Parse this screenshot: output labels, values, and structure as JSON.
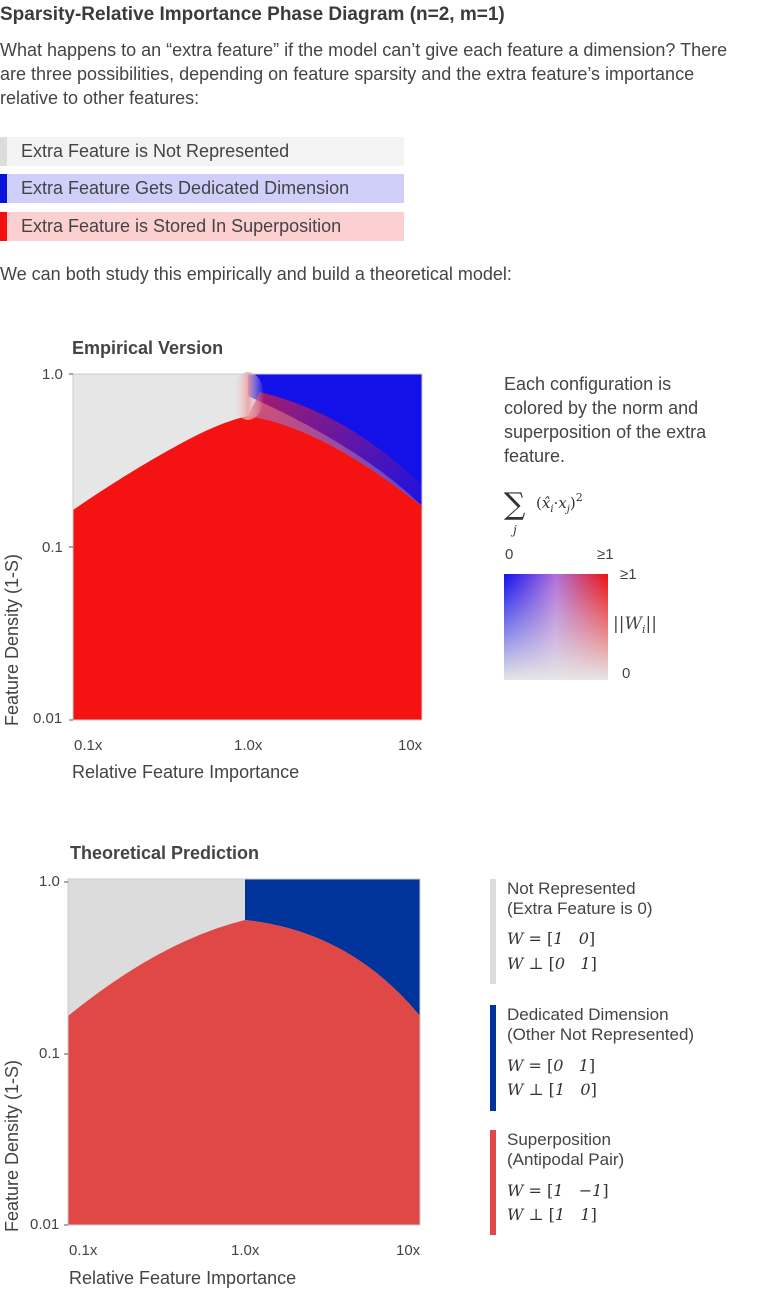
{
  "title": "Sparsity-Relative Importance Phase Diagram (n=2, m=1)",
  "intro": "What happens to an “extra feature” if the model can’t give each feature a dimension? There are three possibilities, depending on feature sparsity and the extra feature’s importance relative to other features:",
  "categories": [
    {
      "label": "Extra Feature is Not Represented",
      "bar_color": "#dcdcdc",
      "bg_color": "#f3f3f3"
    },
    {
      "label": "Extra Feature Gets Dedicated Dimension",
      "bar_color": "#0a14d8",
      "bg_color": "#cfcffa"
    },
    {
      "label": "Extra Feature is Stored In Superposition",
      "bar_color": "#f21010",
      "bg_color": "#fcd0d0"
    }
  ],
  "study_text": "We can both study this empirically and build a theoretical model:",
  "empirical": {
    "title": "Empirical Version",
    "y_ticks": [
      "1.0",
      "0.1",
      "0.01"
    ],
    "x_ticks": [
      "0.1x",
      "1.0x",
      "10x"
    ],
    "xlabel": "Relative Feature Importance",
    "ylabel": "Feature Density (1-S)",
    "caption": "Each configuration is colored by the norm and superposition of the extra feature.",
    "colorbar": {
      "top_left": "0",
      "top_right": "≥1",
      "right_top": "≥1",
      "right_bottom": "0",
      "colors": {
        "blue": "#1010ee",
        "red": "#ee1010",
        "light": "#e6e6e6"
      }
    }
  },
  "theoretical": {
    "title": "Theoretical Prediction",
    "y_ticks": [
      "1.0",
      "0.1",
      "0.01"
    ],
    "x_ticks": [
      "0.1x",
      "1.0x",
      "10x"
    ],
    "xlabel": "Relative Feature Importance",
    "ylabel": "Feature Density (1-S)",
    "colors": {
      "not_represented": "#dcdcdc",
      "dedicated": "#00349a",
      "superposition": "#e04848"
    },
    "legend": [
      {
        "line1": "Not Represented",
        "line2": "(Extra Feature is 0)",
        "color": "#dcdcdc",
        "w": [
          "1",
          "0"
        ],
        "wperp": [
          "0",
          "1"
        ]
      },
      {
        "line1": "Dedicated Dimension",
        "line2": "(Other Not Represented)",
        "color": "#00349a",
        "w": [
          "0",
          "1"
        ],
        "wperp": [
          "1",
          "0"
        ]
      },
      {
        "line1": "Superposition",
        "line2": "(Antipodal Pair)",
        "color": "#e04848",
        "w": [
          "1",
          "−1"
        ],
        "wperp": [
          "1",
          "1"
        ]
      }
    ]
  }
}
